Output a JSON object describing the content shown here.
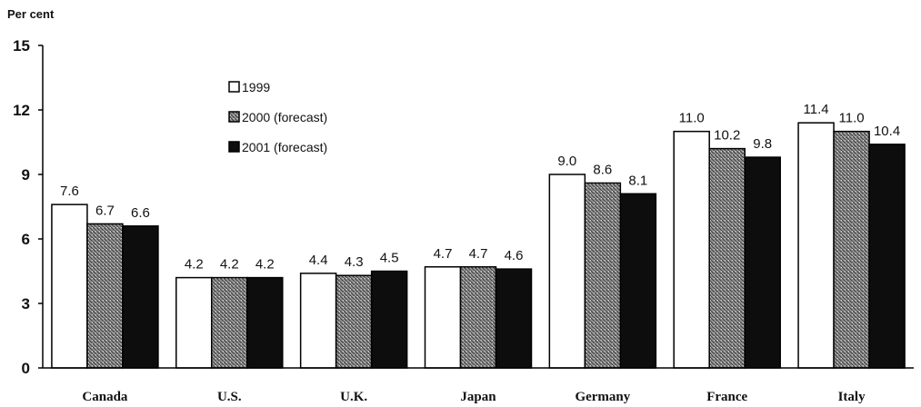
{
  "chart_data": {
    "type": "bar",
    "ylabel": "Per cent",
    "ylim": [
      0,
      15
    ],
    "yticks": [
      "0",
      "3",
      "6",
      "9",
      "12",
      "15"
    ],
    "categories": [
      "Canada",
      "U.S.",
      "U.K.",
      "Japan",
      "Germany",
      "France",
      "Italy"
    ],
    "series": [
      {
        "name": "1999",
        "values": [
          7.6,
          4.2,
          4.4,
          4.7,
          9.0,
          11.0,
          11.4
        ],
        "labels": [
          "7.6",
          "4.2",
          "4.4",
          "4.7",
          "9.0",
          "11.0",
          "11.4"
        ],
        "fill": "white"
      },
      {
        "name": "2000 (forecast)",
        "values": [
          6.7,
          4.2,
          4.3,
          4.7,
          8.6,
          10.2,
          11.0
        ],
        "labels": [
          "6.7",
          "4.2",
          "4.3",
          "4.7",
          "8.6",
          "10.2",
          "11.0"
        ],
        "fill": "hatch"
      },
      {
        "name": "2001 (forecast)",
        "values": [
          6.6,
          4.2,
          4.5,
          4.6,
          8.1,
          9.8,
          10.4
        ],
        "labels": [
          "6.6",
          "4.2",
          "4.5",
          "4.6",
          "8.1",
          "9.8",
          "10.4"
        ],
        "fill": "black"
      }
    ],
    "legend_position": "top-left",
    "grid": false
  },
  "colors": {
    "black_bar": "#0d0d0d",
    "hatch_base": "#8a8a8a",
    "outline": "#000000"
  }
}
